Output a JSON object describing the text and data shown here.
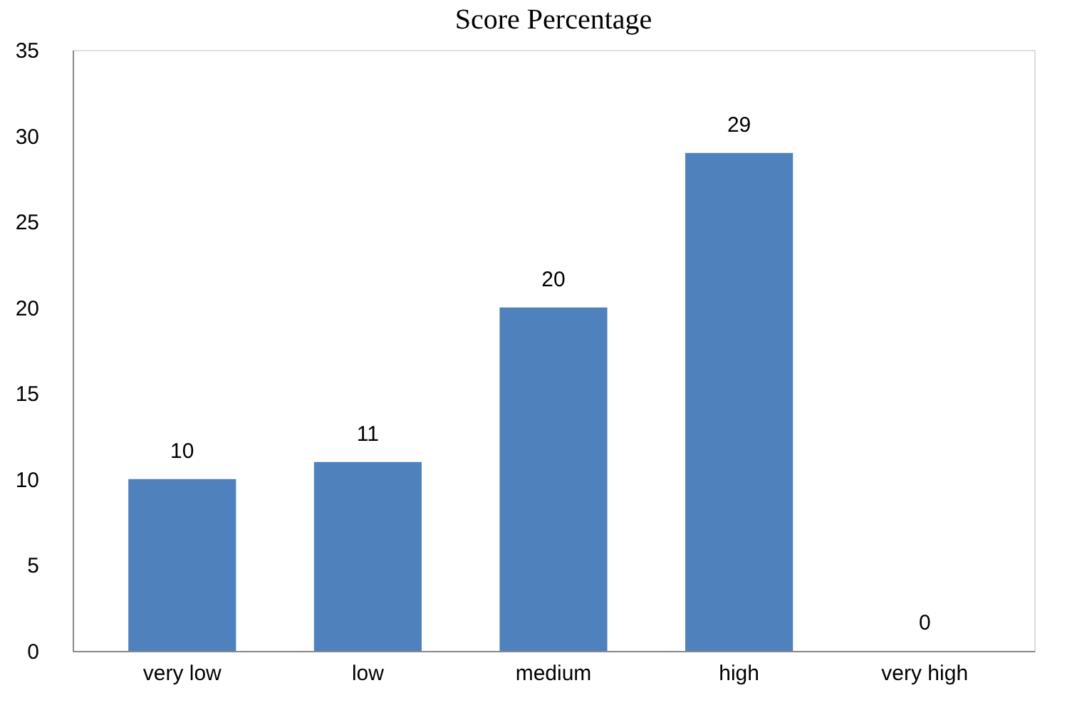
{
  "chart_data": {
    "type": "bar",
    "title": "Score Percentage",
    "categories": [
      "very low",
      "low",
      "medium",
      "high",
      "very high"
    ],
    "values": [
      10,
      11,
      20,
      29,
      0
    ],
    "color": "#4f81bd",
    "ylim": [
      0,
      35
    ],
    "yticks": [
      0,
      5,
      10,
      15,
      20,
      25,
      30,
      35
    ],
    "grid": false,
    "data_labels": true
  }
}
